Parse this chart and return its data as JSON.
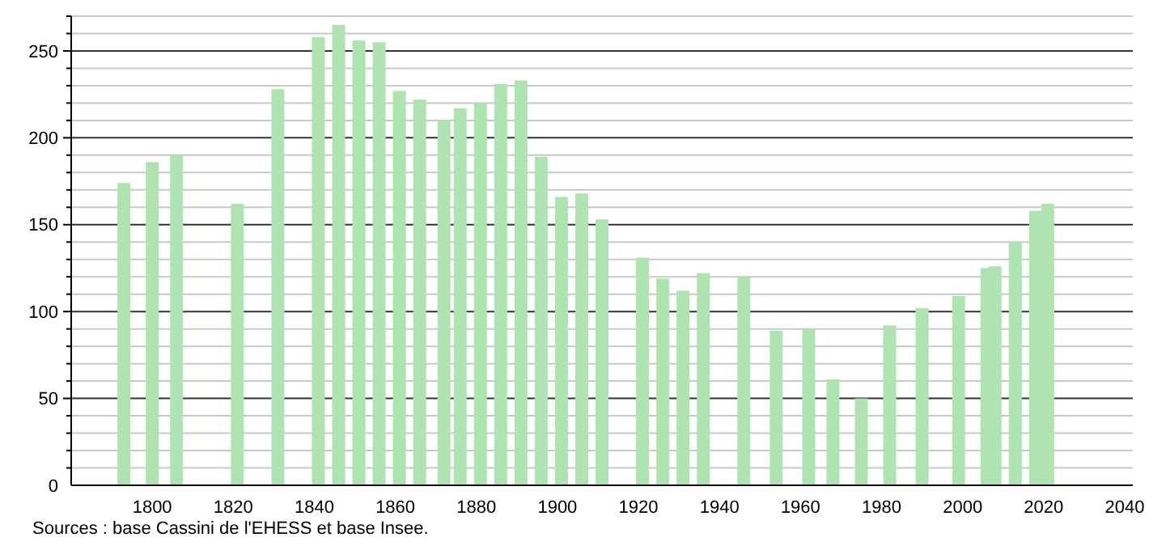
{
  "chart_data": {
    "type": "bar",
    "x": [
      1793,
      1800,
      1806,
      1821,
      1831,
      1841,
      1846,
      1851,
      1856,
      1861,
      1866,
      1872,
      1876,
      1881,
      1886,
      1891,
      1896,
      1901,
      1906,
      1911,
      1921,
      1926,
      1931,
      1936,
      1946,
      1954,
      1962,
      1968,
      1975,
      1982,
      1990,
      1999,
      2006,
      2008,
      2013,
      2018,
      2021
    ],
    "values": [
      174,
      186,
      190,
      162,
      228,
      258,
      265,
      256,
      255,
      227,
      222,
      210,
      217,
      220,
      231,
      233,
      189,
      166,
      168,
      153,
      131,
      119,
      112,
      122,
      120,
      89,
      90,
      61,
      50,
      92,
      102,
      109,
      125,
      126,
      140,
      158,
      162
    ],
    "color": "#b0e3b2",
    "xlim": [
      1780,
      2042
    ],
    "xticks": [
      1800,
      1820,
      1840,
      1860,
      1880,
      1900,
      1920,
      1940,
      1960,
      1980,
      2000,
      2020,
      2040
    ],
    "ylim": [
      0,
      270
    ],
    "yticks": [
      0,
      {
        "value": 10,
        "label": null
      },
      {
        "value": 20,
        "label": null
      },
      {
        "value": 30,
        "label": null
      },
      {
        "value": 40,
        "label": null
      },
      50,
      {
        "value": 60,
        "label": null
      },
      {
        "value": 70,
        "label": null
      },
      {
        "value": 80,
        "label": null
      },
      {
        "value": 90,
        "label": null
      },
      100,
      {
        "value": 110,
        "label": null
      },
      {
        "value": 120,
        "label": null
      },
      {
        "value": 130,
        "label": null
      },
      {
        "value": 140,
        "label": null
      },
      150,
      {
        "value": 160,
        "label": null
      },
      {
        "value": 170,
        "label": null
      },
      {
        "value": 180,
        "label": null
      },
      {
        "value": 190,
        "label": null
      },
      200,
      {
        "value": 210,
        "label": null
      },
      {
        "value": 220,
        "label": null
      },
      {
        "value": 230,
        "label": null
      },
      {
        "value": 240,
        "label": null
      },
      250,
      {
        "value": 260,
        "label": null
      },
      {
        "value": 270,
        "label": null
      }
    ],
    "grid": "y",
    "annotations": [
      "Sources : base Cassini de l'EHESS et base Insee."
    ]
  }
}
